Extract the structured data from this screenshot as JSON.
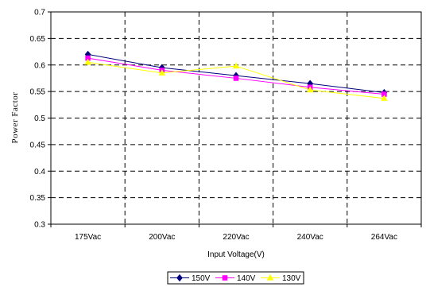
{
  "chart_data": {
    "type": "line",
    "title": "",
    "xlabel": "Input Voltage(V)",
    "ylabel": "Power Factor",
    "categories": [
      "175Vac",
      "200Vac",
      "220Vac",
      "240Vac",
      "264Vac"
    ],
    "ylim": [
      0.3,
      0.7
    ],
    "yticks": [
      "0.3",
      "0.35",
      "0.4",
      "0.45",
      "0.5",
      "0.55",
      "0.6",
      "0.65",
      "0.7"
    ],
    "grid": true,
    "legend_position": "bottom",
    "series": [
      {
        "name": "150V",
        "values": [
          0.62,
          0.595,
          0.58,
          0.565,
          0.548
        ],
        "color": "#00007f",
        "marker": "diamond"
      },
      {
        "name": "140V",
        "values": [
          0.613,
          0.59,
          0.575,
          0.558,
          0.545
        ],
        "color": "#ff00ff",
        "marker": "square"
      },
      {
        "name": "130V",
        "values": [
          0.605,
          0.585,
          0.598,
          0.553,
          0.537
        ],
        "color": "#ffff00",
        "marker": "triangle"
      }
    ]
  }
}
